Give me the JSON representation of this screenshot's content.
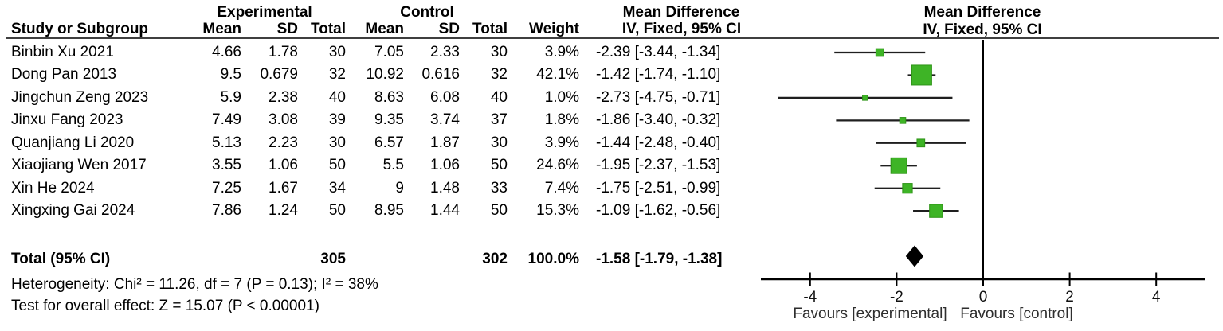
{
  "colors": {
    "marker_green": "#3eb426",
    "marker_green_border": "#2e9417",
    "ci_line_black": "#1f1f1f",
    "axis_black": "#000000",
    "rule_gray": "#3f3f3f",
    "favours_text": "#2e2e2e"
  },
  "header": {
    "experimental": "Experimental",
    "control": "Control",
    "mean_difference_text_col": "Mean Difference",
    "mean_difference_plot_col": "Mean Difference",
    "study": "Study or Subgroup",
    "mean_exp": "Mean",
    "sd_exp": "SD",
    "total_exp": "Total",
    "mean_ctrl": "Mean",
    "sd_ctrl": "SD",
    "total_ctrl": "Total",
    "weight": "Weight",
    "ci": "IV, Fixed, 95% CI",
    "ci_plot": "IV, Fixed, 95% CI"
  },
  "rows": [
    {
      "study": "Binbin Xu 2021",
      "mean": "4.66",
      "sd": "1.78",
      "total": "30",
      "mean2": "7.05",
      "sd2": "2.33",
      "total2": "30",
      "weight": "3.9%",
      "ci": "-2.39 [-3.44, -1.34]"
    },
    {
      "study": "Dong Pan 2013",
      "mean": "9.5",
      "sd": "0.679",
      "total": "32",
      "mean2": "10.92",
      "sd2": "0.616",
      "total2": "32",
      "weight": "42.1%",
      "ci": "-1.42 [-1.74, -1.10]"
    },
    {
      "study": "Jingchun Zeng 2023",
      "mean": "5.9",
      "sd": "2.38",
      "total": "40",
      "mean2": "8.63",
      "sd2": "6.08",
      "total2": "40",
      "weight": "1.0%",
      "ci": "-2.73 [-4.75, -0.71]"
    },
    {
      "study": "Jinxu Fang 2023",
      "mean": "7.49",
      "sd": "3.08",
      "total": "39",
      "mean2": "9.35",
      "sd2": "3.74",
      "total2": "37",
      "weight": "1.8%",
      "ci": "-1.86 [-3.40, -0.32]"
    },
    {
      "study": "Quanjiang Li 2020",
      "mean": "5.13",
      "sd": "2.23",
      "total": "30",
      "mean2": "6.57",
      "sd2": "1.87",
      "total2": "30",
      "weight": "3.9%",
      "ci": "-1.44 [-2.48, -0.40]"
    },
    {
      "study": "Xiaojiang Wen 2017",
      "mean": "3.55",
      "sd": "1.06",
      "total": "50",
      "mean2": "5.5",
      "sd2": "1.06",
      "total2": "50",
      "weight": "24.6%",
      "ci": "-1.95 [-2.37, -1.53]"
    },
    {
      "study": "Xin He 2024",
      "mean": "7.25",
      "sd": "1.67",
      "total": "34",
      "mean2": "9",
      "sd2": "1.48",
      "total2": "33",
      "weight": "7.4%",
      "ci": "-1.75 [-2.51, -0.99]"
    },
    {
      "study": "Xingxing Gai 2024",
      "mean": "7.86",
      "sd": "1.24",
      "total": "50",
      "mean2": "8.95",
      "sd2": "1.44",
      "total2": "50",
      "weight": "15.3%",
      "ci": "-1.09 [-1.62, -0.56]"
    }
  ],
  "total_row": {
    "label": "Total (95% CI)",
    "total": "305",
    "total2": "302",
    "weight": "100.0%",
    "ci": "-1.58 [-1.79, -1.38]"
  },
  "footer": {
    "heterogeneity": "Heterogeneity: Chi² = 11.26, df = 7 (P = 0.13); I² = 38%",
    "overall": "Test for overall effect: Z = 15.07 (P < 0.00001)"
  },
  "chart_data": {
    "type": "scatter",
    "subtype": "forest-plot",
    "title": "Mean Difference",
    "effect_model": "IV, Fixed, 95% CI",
    "x_ticks": [
      -4,
      -2,
      0,
      2,
      4
    ],
    "xlim": [
      -5.15,
      5.15
    ],
    "favours_left": "Favours [experimental]",
    "favours_right": "Favours [control]",
    "studies": [
      {
        "name": "Binbin Xu 2021",
        "exp_mean": 4.66,
        "exp_sd": 1.78,
        "exp_n": 30,
        "ctrl_mean": 7.05,
        "ctrl_sd": 2.33,
        "ctrl_n": 30,
        "weight": 3.9,
        "md": -2.39,
        "lo": -3.44,
        "hi": -1.34
      },
      {
        "name": "Dong Pan 2013",
        "exp_mean": 9.5,
        "exp_sd": 0.679,
        "exp_n": 32,
        "ctrl_mean": 10.92,
        "ctrl_sd": 0.616,
        "ctrl_n": 32,
        "weight": 42.1,
        "md": -1.42,
        "lo": -1.74,
        "hi": -1.1
      },
      {
        "name": "Jingchun Zeng 2023",
        "exp_mean": 5.9,
        "exp_sd": 2.38,
        "exp_n": 40,
        "ctrl_mean": 8.63,
        "ctrl_sd": 6.08,
        "ctrl_n": 40,
        "weight": 1.0,
        "md": -2.73,
        "lo": -4.75,
        "hi": -0.71
      },
      {
        "name": "Jinxu Fang 2023",
        "exp_mean": 7.49,
        "exp_sd": 3.08,
        "exp_n": 39,
        "ctrl_mean": 9.35,
        "ctrl_sd": 3.74,
        "ctrl_n": 37,
        "weight": 1.8,
        "md": -1.86,
        "lo": -3.4,
        "hi": -0.32
      },
      {
        "name": "Quanjiang Li 2020",
        "exp_mean": 5.13,
        "exp_sd": 2.23,
        "exp_n": 30,
        "ctrl_mean": 6.57,
        "ctrl_sd": 1.87,
        "ctrl_n": 30,
        "weight": 3.9,
        "md": -1.44,
        "lo": -2.48,
        "hi": -0.4
      },
      {
        "name": "Xiaojiang Wen 2017",
        "exp_mean": 3.55,
        "exp_sd": 1.06,
        "exp_n": 50,
        "ctrl_mean": 5.5,
        "ctrl_sd": 1.06,
        "ctrl_n": 50,
        "weight": 24.6,
        "md": -1.95,
        "lo": -2.37,
        "hi": -1.53
      },
      {
        "name": "Xin He 2024",
        "exp_mean": 7.25,
        "exp_sd": 1.67,
        "exp_n": 34,
        "ctrl_mean": 9,
        "ctrl_sd": 1.48,
        "ctrl_n": 33,
        "weight": 7.4,
        "md": -1.75,
        "lo": -2.51,
        "hi": -0.99
      },
      {
        "name": "Xingxing Gai 2024",
        "exp_mean": 7.86,
        "exp_sd": 1.24,
        "exp_n": 50,
        "ctrl_mean": 8.95,
        "ctrl_sd": 1.44,
        "ctrl_n": 50,
        "weight": 15.3,
        "md": -1.09,
        "lo": -1.62,
        "hi": -0.56
      }
    ],
    "total": {
      "exp_n": 305,
      "ctrl_n": 302,
      "weight": 100.0,
      "md": -1.58,
      "lo": -1.79,
      "hi": -1.38
    },
    "heterogeneity": {
      "chi2": 11.26,
      "df": 7,
      "p": 0.13,
      "i2_pct": 38
    },
    "overall_effect": {
      "z": 15.07,
      "p": "< 0.00001"
    }
  }
}
